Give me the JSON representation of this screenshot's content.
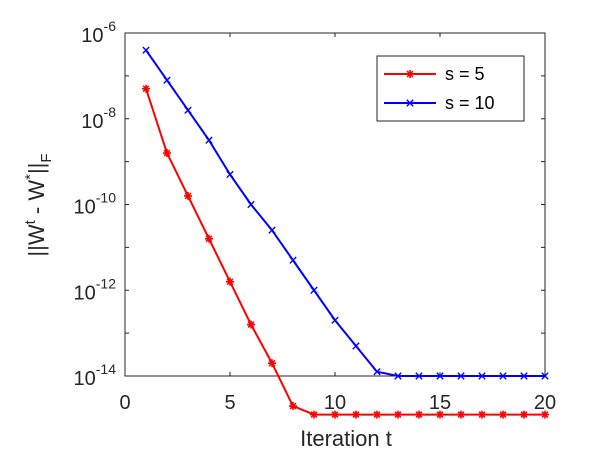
{
  "chart_data": {
    "type": "line",
    "title": "",
    "xlabel": "Iteration t",
    "ylabel": {
      "prefix": "||W",
      "sup1": "t",
      "mid": " - W",
      "sup2": "*",
      "suffix": "||",
      "sub": "F"
    },
    "yscale": "log",
    "xlim": [
      0,
      20
    ],
    "ylim_log10": [
      -14,
      -6
    ],
    "x_ticks": [
      {
        "value": 0,
        "label": "0"
      },
      {
        "value": 5,
        "label": "5"
      },
      {
        "value": 10,
        "label": "10"
      },
      {
        "value": 15,
        "label": "15"
      },
      {
        "value": 20,
        "label": "20"
      }
    ],
    "y_ticks": [
      {
        "exp": -6,
        "base": "10",
        "sup": "-6"
      },
      {
        "exp": -8,
        "base": "10",
        "sup": "-8"
      },
      {
        "exp": -10,
        "base": "10",
        "sup": "-10"
      },
      {
        "exp": -12,
        "base": "10",
        "sup": "-12"
      },
      {
        "exp": -14,
        "base": "10",
        "sup": "-14"
      }
    ],
    "legend_position": "top-right",
    "series": [
      {
        "name": "s = 5",
        "color": "#ff0000",
        "marker": "asterisk",
        "x": [
          1,
          2,
          3,
          4,
          5,
          6,
          7,
          8,
          9,
          10,
          11,
          12,
          13,
          14,
          15,
          16,
          17,
          18,
          19,
          20
        ],
        "log10_y": [
          -7.3,
          -8.8,
          -9.8,
          -10.8,
          -11.8,
          -12.8,
          -13.7,
          -14.7,
          -14.9,
          -14.9,
          -14.9,
          -14.9,
          -14.9,
          -14.9,
          -14.9,
          -14.9,
          -14.9,
          -14.9,
          -14.9,
          -14.9
        ]
      },
      {
        "name": "s = 10",
        "color": "#0000ff",
        "marker": "x",
        "x": [
          1,
          2,
          3,
          4,
          5,
          6,
          7,
          8,
          9,
          10,
          11,
          12,
          13,
          14,
          15,
          16,
          17,
          18,
          19,
          20
        ],
        "log10_y": [
          -6.4,
          -7.1,
          -7.8,
          -8.5,
          -9.3,
          -10.0,
          -10.6,
          -11.3,
          -12.0,
          -12.7,
          -13.3,
          -13.9,
          -14.0,
          -14.0,
          -14.0,
          -14.0,
          -14.0,
          -14.0,
          -14.0,
          -14.0
        ]
      }
    ]
  }
}
